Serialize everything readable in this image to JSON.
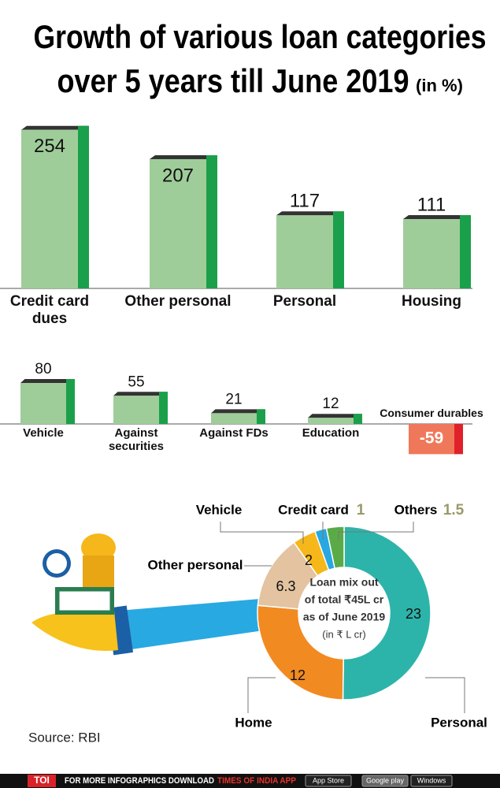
{
  "title": "Growth of various loan categories",
  "title_line2": "over 5 years till June 2019",
  "title_unit": "(in %)",
  "chart_data": [
    {
      "type": "bar",
      "categories": [
        "Credit card dues",
        "Other personal",
        "Personal",
        "Housing"
      ],
      "values": [
        254,
        207,
        117,
        111
      ],
      "color": "#9fcd9a",
      "side_color": "#1aa04a",
      "ylim": [
        0,
        260
      ]
    },
    {
      "type": "bar",
      "categories": [
        "Vehicle",
        "Against securities",
        "Against FDs",
        "Education",
        "Consumer durables"
      ],
      "values": [
        80,
        55,
        21,
        12,
        -59
      ],
      "color": "#9fcd9a",
      "side_color": "#1aa04a",
      "negative_color": "#f0785a",
      "negative_side_color": "#e0202a",
      "ylim": [
        -80,
        90
      ]
    },
    {
      "type": "donut",
      "categories": [
        "Personal",
        "Home",
        "Other personal",
        "Vehicle",
        "Credit card",
        "Others"
      ],
      "values": [
        23,
        12,
        6.3,
        2,
        1,
        1.5
      ],
      "colors": [
        "#2db4aa",
        "#f28a22",
        "#e3c3a0",
        "#f5b719",
        "#27a8e0",
        "#5aab47"
      ],
      "center_text": [
        "Loan mix out",
        "of total ₹45L cr",
        "as of June 2019"
      ],
      "center_unit": "(in ₹ L cr)"
    }
  ],
  "source": "Source: RBI",
  "footer": {
    "brand": "TOI",
    "text": "FOR MORE  INFOGRAPHICS DOWNLOAD",
    "app": "TIMES OF INDIA  APP",
    "badges": [
      "App Store",
      "Google play",
      "Windows"
    ]
  }
}
